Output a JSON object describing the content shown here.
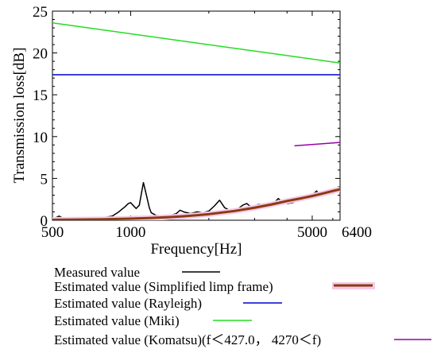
{
  "chart_data": {
    "type": "line",
    "xlabel": "Frequency[Hz]",
    "ylabel": "Transmission loss[dB]",
    "x_scale": "log",
    "xlim": [
      500,
      6400
    ],
    "ylim": [
      0,
      25
    ],
    "x_ticks": [
      {
        "value": 500,
        "label": "500"
      },
      {
        "value": 1000,
        "label": "1000"
      },
      {
        "value": 5000,
        "label": "5000"
      },
      {
        "value": 6400,
        "label": "6400"
      }
    ],
    "y_ticks": [
      {
        "value": 0,
        "label": "0"
      },
      {
        "value": 5,
        "label": "5"
      },
      {
        "value": 10,
        "label": "10"
      },
      {
        "value": 15,
        "label": "15"
      },
      {
        "value": 20,
        "label": "20"
      },
      {
        "value": 25,
        "label": "25"
      }
    ],
    "grid": false,
    "legend_position": "below",
    "series": [
      {
        "name": "Measured value",
        "color": "#000000",
        "x": [
          500,
          530,
          560,
          600,
          650,
          700,
          750,
          800,
          850,
          900,
          950,
          980,
          1000,
          1020,
          1050,
          1080,
          1100,
          1120,
          1150,
          1180,
          1200,
          1250,
          1300,
          1400,
          1500,
          1550,
          1600,
          1700,
          1800,
          1900,
          2000,
          2100,
          2200,
          2300,
          2400,
          2500,
          2600,
          2700,
          2800,
          2900,
          3000,
          3100,
          3200,
          3300,
          3400,
          3500,
          3600,
          3700,
          3800,
          4000,
          4200,
          4400,
          4600,
          4800,
          5000,
          5200,
          5400,
          5600,
          5800,
          6000,
          6200,
          6400
        ],
        "y": [
          0.1,
          0.5,
          0.1,
          0.05,
          0.1,
          0.2,
          0.3,
          0.35,
          0.5,
          1.0,
          1.6,
          2.0,
          2.1,
          1.8,
          1.4,
          1.8,
          3.2,
          4.5,
          3.0,
          1.5,
          0.9,
          0.6,
          0.5,
          0.5,
          0.8,
          1.2,
          1.0,
          0.8,
          1.0,
          0.9,
          1.1,
          1.7,
          2.4,
          1.5,
          1.2,
          1.3,
          1.4,
          1.8,
          2.0,
          1.6,
          1.7,
          1.9,
          1.9,
          1.6,
          1.6,
          1.8,
          2.2,
          2.6,
          2.3,
          2.0,
          2.1,
          2.4,
          2.8,
          2.6,
          3.0,
          3.5,
          2.9,
          3.2,
          3.4,
          3.2,
          3.7,
          3.4
        ]
      },
      {
        "name": "Estimated value (Simplified limp frame)",
        "color": "#8b3a10",
        "x": [
          500,
          600,
          700,
          800,
          900,
          1000,
          1200,
          1400,
          1600,
          1800,
          2000,
          2500,
          3000,
          3500,
          4000,
          4500,
          5000,
          5500,
          6000,
          6400
        ],
        "y": [
          0.05,
          0.07,
          0.09,
          0.12,
          0.15,
          0.19,
          0.27,
          0.37,
          0.48,
          0.6,
          0.73,
          1.1,
          1.5,
          1.9,
          2.3,
          2.6,
          2.9,
          3.2,
          3.5,
          3.7
        ]
      },
      {
        "name": "Estimated value (Rayleigh)",
        "color": "#0000cc",
        "x": [
          500,
          6400
        ],
        "y": [
          17.4,
          17.4
        ]
      },
      {
        "name": "Estimated value (Miki)",
        "color": "#22dd22",
        "x": [
          500,
          6400
        ],
        "y": [
          23.6,
          18.8
        ]
      },
      {
        "name": "Estimated value (Komatsu)(f＜427.0， 4270＜f)",
        "color": "#9900aa",
        "x": [
          4270,
          6400
        ],
        "y": [
          8.9,
          9.3
        ]
      }
    ]
  }
}
